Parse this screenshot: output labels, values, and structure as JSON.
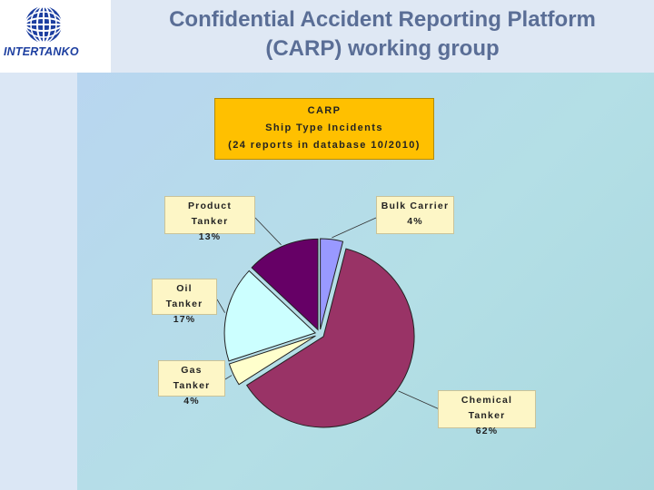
{
  "header": {
    "logo_text": "INTERTANKO",
    "title_line_1": "Confidential Accident Reporting Platform",
    "title_line_2": "(CARP) working group"
  },
  "colors": {
    "logo_blue": "#1d3fa0",
    "title_text": "#5a6e96",
    "chart_title_bg": "#ffc000",
    "label_bg": "#fdf6c6"
  },
  "chart_data": {
    "type": "pie",
    "title_lines": [
      "CARP",
      "Ship Type Incidents",
      "(24 reports in database 10/2010)"
    ],
    "slices": [
      {
        "name": "Bulk Carrier",
        "value": 4,
        "label": "4%",
        "color": "#9999ff"
      },
      {
        "name": "Chemical Tanker",
        "value": 62,
        "label": "62%",
        "color": "#993366"
      },
      {
        "name": "Gas Tanker",
        "value": 4,
        "label": "4%",
        "color": "#ffffcc"
      },
      {
        "name": "Oil Tanker",
        "value": 17,
        "label": "17%",
        "color": "#ccffff"
      },
      {
        "name": "Product Tanker",
        "value": 13,
        "label": "13%",
        "color": "#660066"
      }
    ],
    "start_angle_deg": 0,
    "direction": "clockwise"
  }
}
